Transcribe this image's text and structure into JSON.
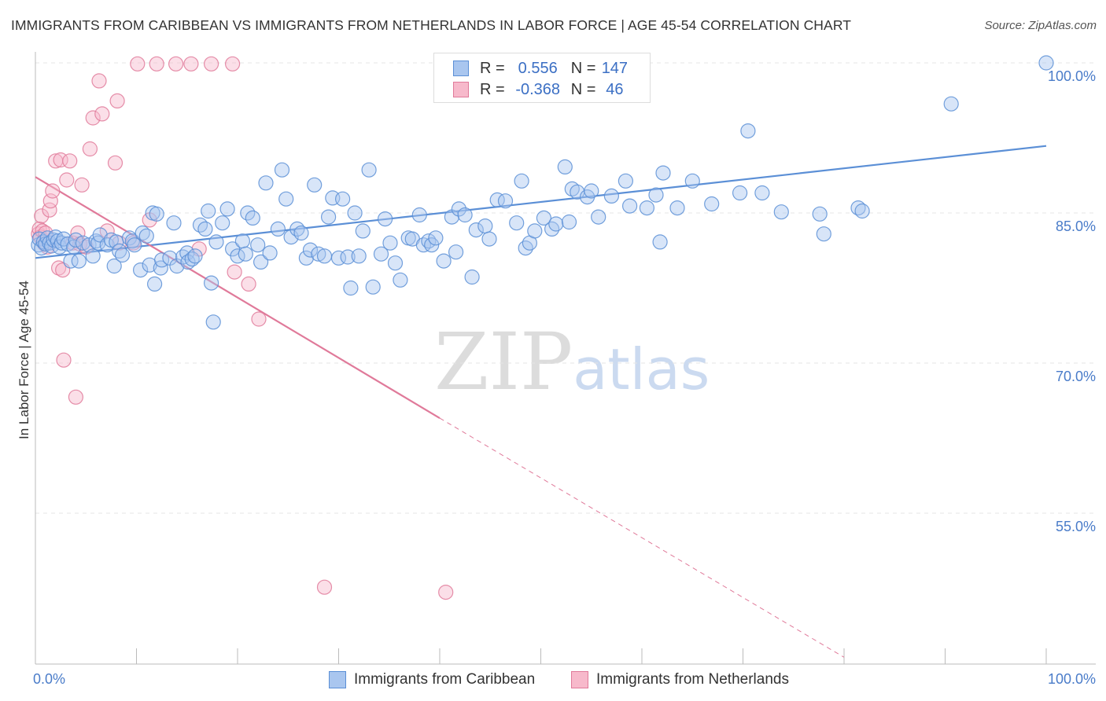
{
  "title": "IMMIGRANTS FROM CARIBBEAN VS IMMIGRANTS FROM NETHERLANDS IN LABOR FORCE | AGE 45-54 CORRELATION CHART",
  "source": "Source: ZipAtlas.com",
  "watermark": {
    "part1": "ZIP",
    "part2": "atlas"
  },
  "legend": {
    "r_label": "R =",
    "n_label": "N =",
    "rows": [
      {
        "r": "0.556",
        "n": "147",
        "color": "#a9c6ef",
        "border": "#5b8fd6"
      },
      {
        "r": "-0.368",
        "n": "46",
        "color": "#f7b9cb",
        "border": "#e07a9a"
      }
    ]
  },
  "bottom_legend": [
    "Immigrants from Caribbean",
    "Immigrants from Netherlands"
  ],
  "chart_data": {
    "type": "scatter",
    "title": "IMMIGRANTS FROM CARIBBEAN VS IMMIGRANTS FROM NETHERLANDS IN LABOR FORCE | AGE 45-54 CORRELATION CHART",
    "xlabel": "",
    "ylabel": "In Labor Force | Age 45-54",
    "xlim": [
      0,
      100
    ],
    "ylim": [
      40,
      102
    ],
    "x_tick_labels": [
      "0.0%",
      "100.0%"
    ],
    "y_ticks": [
      55,
      70,
      85,
      100
    ],
    "y_tick_labels": [
      "55.0%",
      "70.0%",
      "85.0%",
      "100.0%"
    ],
    "grid": true,
    "legend_position": "bottom",
    "series": [
      {
        "name": "Immigrants from Caribbean",
        "color": "#5b8fd6",
        "fill": "#a9c6ef",
        "trend": {
          "x": [
            0,
            100
          ],
          "y": [
            80.5,
            91.7
          ],
          "style": "solid"
        },
        "points": [
          [
            0.3,
            81.8
          ],
          [
            0.4,
            82.4
          ],
          [
            0.6,
            81.5
          ],
          [
            0.8,
            82.1
          ],
          [
            1.0,
            81.9
          ],
          [
            1.2,
            82.5
          ],
          [
            1.4,
            82.0
          ],
          [
            1.6,
            81.7
          ],
          [
            1.8,
            82.3
          ],
          [
            2.0,
            82.6
          ],
          [
            2.2,
            82.2
          ],
          [
            2.4,
            81.6
          ],
          [
            2.6,
            82.0
          ],
          [
            2.8,
            82.4
          ],
          [
            3.2,
            81.9
          ],
          [
            3.5,
            80.2
          ],
          [
            3.8,
            81.6
          ],
          [
            4.0,
            82.3
          ],
          [
            4.3,
            80.2
          ],
          [
            4.7,
            82.0
          ],
          [
            5.3,
            81.8
          ],
          [
            5.7,
            80.7
          ],
          [
            6.0,
            82.2
          ],
          [
            6.2,
            82.0
          ],
          [
            6.4,
            82.8
          ],
          [
            7.1,
            81.8
          ],
          [
            7.5,
            82.3
          ],
          [
            7.8,
            79.7
          ],
          [
            8.0,
            82.1
          ],
          [
            8.3,
            81.2
          ],
          [
            8.6,
            80.8
          ],
          [
            9.3,
            82.5
          ],
          [
            9.6,
            82.2
          ],
          [
            9.8,
            81.8
          ],
          [
            10.4,
            79.3
          ],
          [
            10.6,
            83.0
          ],
          [
            11.0,
            82.7
          ],
          [
            11.3,
            79.8
          ],
          [
            11.6,
            85.0
          ],
          [
            11.8,
            77.9
          ],
          [
            12.0,
            84.9
          ],
          [
            12.4,
            79.5
          ],
          [
            12.5,
            80.3
          ],
          [
            13.3,
            80.5
          ],
          [
            13.7,
            84.0
          ],
          [
            14.0,
            79.7
          ],
          [
            14.6,
            80.6
          ],
          [
            15.0,
            81.0
          ],
          [
            15.1,
            80.1
          ],
          [
            15.5,
            80.4
          ],
          [
            15.8,
            80.7
          ],
          [
            16.3,
            83.8
          ],
          [
            16.8,
            83.4
          ],
          [
            17.1,
            85.2
          ],
          [
            17.4,
            78.0
          ],
          [
            17.6,
            74.1
          ],
          [
            17.9,
            82.1
          ],
          [
            18.5,
            84.0
          ],
          [
            19.0,
            85.4
          ],
          [
            19.5,
            81.4
          ],
          [
            20.0,
            80.7
          ],
          [
            20.5,
            82.2
          ],
          [
            20.8,
            80.9
          ],
          [
            21.0,
            85.0
          ],
          [
            21.5,
            84.5
          ],
          [
            22.0,
            81.8
          ],
          [
            22.3,
            80.1
          ],
          [
            22.8,
            88.0
          ],
          [
            23.2,
            81.0
          ],
          [
            24.0,
            83.4
          ],
          [
            24.4,
            89.3
          ],
          [
            24.8,
            86.4
          ],
          [
            25.3,
            82.6
          ],
          [
            25.9,
            83.4
          ],
          [
            26.3,
            83.0
          ],
          [
            26.8,
            80.5
          ],
          [
            27.2,
            81.3
          ],
          [
            27.6,
            87.8
          ],
          [
            28.0,
            80.9
          ],
          [
            28.6,
            80.7
          ],
          [
            29.0,
            84.6
          ],
          [
            29.4,
            86.5
          ],
          [
            30.0,
            80.5
          ],
          [
            30.4,
            86.4
          ],
          [
            30.9,
            80.6
          ],
          [
            31.2,
            77.5
          ],
          [
            31.6,
            85.0
          ],
          [
            32.0,
            80.7
          ],
          [
            32.4,
            83.2
          ],
          [
            33.0,
            89.3
          ],
          [
            33.4,
            77.6
          ],
          [
            34.2,
            80.9
          ],
          [
            34.6,
            84.4
          ],
          [
            35.1,
            82.0
          ],
          [
            35.6,
            80.0
          ],
          [
            36.1,
            78.3
          ],
          [
            36.9,
            82.5
          ],
          [
            37.3,
            82.4
          ],
          [
            38.0,
            84.8
          ],
          [
            38.4,
            81.8
          ],
          [
            38.9,
            82.2
          ],
          [
            39.2,
            81.8
          ],
          [
            39.6,
            82.5
          ],
          [
            40.4,
            80.2
          ],
          [
            41.2,
            84.6
          ],
          [
            41.6,
            81.1
          ],
          [
            41.9,
            85.4
          ],
          [
            42.5,
            84.8
          ],
          [
            43.2,
            78.6
          ],
          [
            43.6,
            83.3
          ],
          [
            44.5,
            83.7
          ],
          [
            44.9,
            82.4
          ],
          [
            45.7,
            86.3
          ],
          [
            46.5,
            86.2
          ],
          [
            47.6,
            84.0
          ],
          [
            48.1,
            88.2
          ],
          [
            48.5,
            81.5
          ],
          [
            48.9,
            82.0
          ],
          [
            49.4,
            83.2
          ],
          [
            50.3,
            84.5
          ],
          [
            51.1,
            83.4
          ],
          [
            51.5,
            83.9
          ],
          [
            52.4,
            89.6
          ],
          [
            52.8,
            84.1
          ],
          [
            53.1,
            87.4
          ],
          [
            53.6,
            87.1
          ],
          [
            54.6,
            86.6
          ],
          [
            55.0,
            87.2
          ],
          [
            55.7,
            84.6
          ],
          [
            57.0,
            86.7
          ],
          [
            58.4,
            88.2
          ],
          [
            58.8,
            85.7
          ],
          [
            60.5,
            85.5
          ],
          [
            61.4,
            86.8
          ],
          [
            61.8,
            82.1
          ],
          [
            62.1,
            89.0
          ],
          [
            63.5,
            85.5
          ],
          [
            65.0,
            88.2
          ],
          [
            66.9,
            85.9
          ],
          [
            69.7,
            87.0
          ],
          [
            70.5,
            93.2
          ],
          [
            71.9,
            87.0
          ],
          [
            73.8,
            85.1
          ],
          [
            77.6,
            84.9
          ],
          [
            78.0,
            82.9
          ],
          [
            81.4,
            85.5
          ],
          [
            81.8,
            85.2
          ],
          [
            90.6,
            95.9
          ],
          [
            100.0,
            100.0
          ]
        ]
      },
      {
        "name": "Immigrants from Netherlands",
        "color": "#e07a9a",
        "fill": "#f7b9cb",
        "trend": {
          "x": [
            0,
            40
          ],
          "y": [
            88.6,
            64.5
          ],
          "style": "solid",
          "extended_x": [
            40,
            80
          ],
          "extended_y": [
            64.5,
            40.6
          ],
          "extended_style": "dashed"
        },
        "points": [
          [
            0.3,
            82.9
          ],
          [
            0.4,
            83.4
          ],
          [
            0.5,
            82.6
          ],
          [
            0.6,
            84.7
          ],
          [
            0.7,
            83.2
          ],
          [
            0.9,
            81.9
          ],
          [
            1.0,
            83.0
          ],
          [
            1.2,
            81.6
          ],
          [
            1.4,
            85.3
          ],
          [
            1.5,
            86.2
          ],
          [
            1.7,
            87.2
          ],
          [
            2.0,
            90.2
          ],
          [
            2.3,
            79.5
          ],
          [
            2.5,
            90.3
          ],
          [
            2.7,
            79.3
          ],
          [
            2.8,
            70.3
          ],
          [
            3.1,
            88.3
          ],
          [
            3.4,
            90.2
          ],
          [
            3.7,
            82.0
          ],
          [
            4.0,
            66.6
          ],
          [
            4.2,
            83.0
          ],
          [
            4.4,
            81.9
          ],
          [
            4.6,
            87.8
          ],
          [
            5.0,
            81.6
          ],
          [
            5.4,
            91.4
          ],
          [
            5.7,
            94.5
          ],
          [
            6.3,
            98.2
          ],
          [
            6.6,
            94.9
          ],
          [
            7.1,
            83.2
          ],
          [
            7.9,
            90.0
          ],
          [
            8.1,
            96.2
          ],
          [
            8.3,
            82.0
          ],
          [
            9.7,
            82.0
          ],
          [
            10.1,
            99.9
          ],
          [
            11.3,
            84.3
          ],
          [
            12.0,
            99.9
          ],
          [
            13.9,
            99.9
          ],
          [
            15.4,
            99.9
          ],
          [
            16.2,
            81.4
          ],
          [
            17.4,
            99.9
          ],
          [
            19.5,
            99.9
          ],
          [
            19.7,
            79.1
          ],
          [
            21.1,
            77.9
          ],
          [
            22.1,
            74.4
          ],
          [
            28.6,
            47.6
          ],
          [
            40.6,
            47.1
          ]
        ]
      }
    ]
  }
}
